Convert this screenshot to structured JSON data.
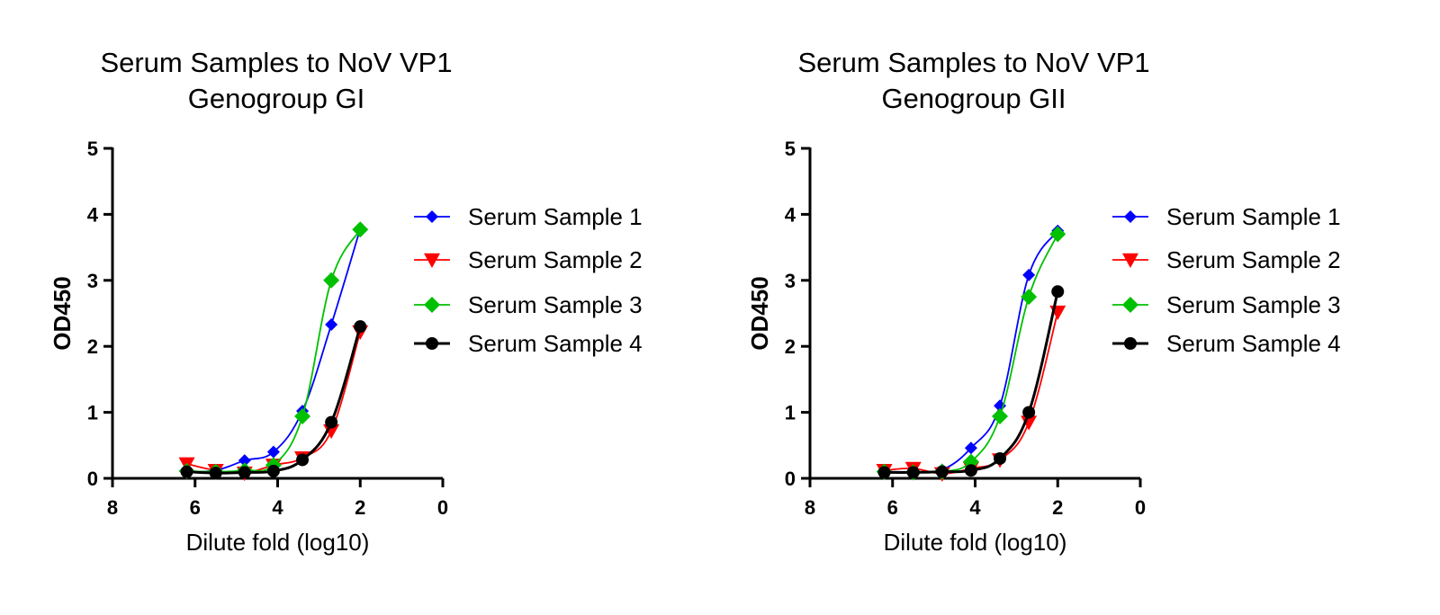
{
  "chart_data": [
    {
      "type": "line",
      "title": [
        "Serum Samples to NoV VP1",
        "Genogroup GI"
      ],
      "xlabel": "Dilute fold (log10)",
      "ylabel": "OD450",
      "xlim": [
        8,
        0
      ],
      "ylim": [
        0,
        5
      ],
      "xticks": [
        "8",
        "6",
        "4",
        "2",
        "0"
      ],
      "yticks": [
        "0",
        "1",
        "2",
        "3",
        "4",
        "5"
      ],
      "legend": "right",
      "series": [
        {
          "name": "Serum Sample 1",
          "color": "#0000ff",
          "marker": "diamond-small",
          "x": [
            6.2,
            5.5,
            4.8,
            4.1,
            3.4,
            2.7,
            2.0
          ],
          "y": [
            0.1,
            0.12,
            0.27,
            0.4,
            1.02,
            2.33,
            3.78
          ]
        },
        {
          "name": "Serum Sample 2",
          "color": "#ff0000",
          "marker": "triangle-down",
          "x": [
            6.2,
            5.5,
            4.8,
            4.1,
            3.4,
            2.7,
            2.0
          ],
          "y": [
            0.22,
            0.12,
            0.08,
            0.2,
            0.31,
            0.72,
            2.22
          ]
        },
        {
          "name": "Serum Sample 3",
          "color": "#00c000",
          "marker": "diamond",
          "x": [
            6.2,
            5.5,
            4.8,
            4.1,
            3.4,
            2.7,
            2.0
          ],
          "y": [
            0.11,
            0.1,
            0.12,
            0.2,
            0.94,
            3.0,
            3.77
          ]
        },
        {
          "name": "Serum Sample 4",
          "color": "#000000",
          "marker": "circle",
          "x": [
            6.2,
            5.5,
            4.8,
            4.1,
            3.4,
            2.7,
            2.0
          ],
          "y": [
            0.1,
            0.08,
            0.09,
            0.11,
            0.28,
            0.85,
            2.3
          ]
        }
      ]
    },
    {
      "type": "line",
      "title": [
        "Serum Samples to NoV VP1",
        "Genogroup GII"
      ],
      "xlabel": "Dilute fold (log10)",
      "ylabel": "OD450",
      "xlim": [
        8,
        0
      ],
      "ylim": [
        0,
        5
      ],
      "xticks": [
        "8",
        "6",
        "4",
        "2",
        "0"
      ],
      "yticks": [
        "0",
        "1",
        "2",
        "3",
        "4",
        "5"
      ],
      "legend": "right",
      "series": [
        {
          "name": "Serum Sample 1",
          "color": "#0000ff",
          "marker": "diamond-small",
          "x": [
            6.2,
            5.5,
            4.8,
            4.1,
            3.4,
            2.7,
            2.0
          ],
          "y": [
            0.1,
            0.1,
            0.13,
            0.46,
            1.1,
            3.08,
            3.75
          ]
        },
        {
          "name": "Serum Sample 2",
          "color": "#ff0000",
          "marker": "triangle-down",
          "x": [
            6.2,
            5.5,
            4.8,
            4.1,
            3.4,
            2.7,
            2.0
          ],
          "y": [
            0.12,
            0.15,
            0.07,
            0.15,
            0.28,
            0.85,
            2.52
          ]
        },
        {
          "name": "Serum Sample 3",
          "color": "#00c000",
          "marker": "diamond",
          "x": [
            6.2,
            5.5,
            4.8,
            4.1,
            3.4,
            2.7,
            2.0
          ],
          "y": [
            0.1,
            0.09,
            0.1,
            0.25,
            0.94,
            2.75,
            3.7
          ]
        },
        {
          "name": "Serum Sample 4",
          "color": "#000000",
          "marker": "circle",
          "x": [
            6.2,
            5.5,
            4.8,
            4.1,
            3.4,
            2.7,
            2.0
          ],
          "y": [
            0.09,
            0.09,
            0.1,
            0.12,
            0.3,
            1.0,
            2.83
          ]
        }
      ]
    }
  ]
}
